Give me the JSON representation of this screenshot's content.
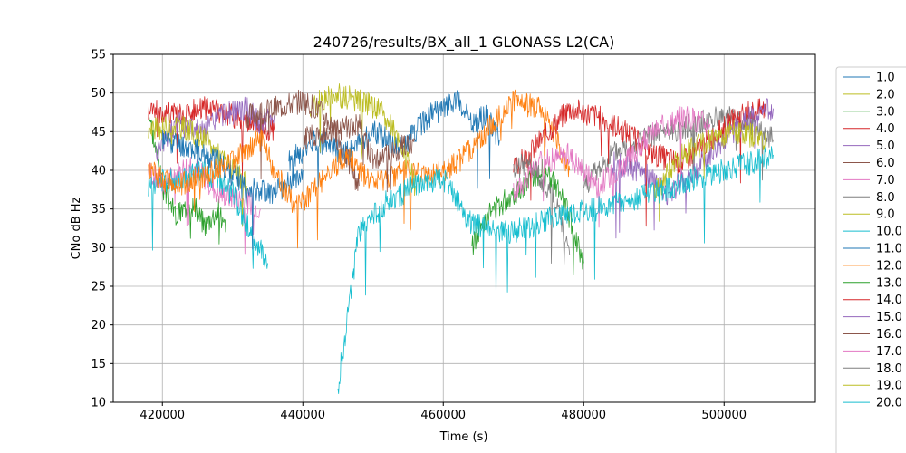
{
  "chart_data": {
    "type": "line",
    "title": "240726/results/BX_all_1 GLONASS L2(CA)",
    "xlabel": "Time (s)",
    "ylabel": "CNo dB Hz",
    "xlim": [
      413000,
      513000
    ],
    "ylim": [
      10,
      55
    ],
    "xticks": [
      420000,
      440000,
      460000,
      480000,
      500000
    ],
    "yticks": [
      10,
      15,
      20,
      25,
      30,
      35,
      40,
      45,
      50,
      55
    ],
    "grid": true,
    "legend_position": "right, outside plot (partially cut off)",
    "series": [
      {
        "name": "1.0",
        "color": "#1f77b4",
        "points": [
          [
            438000,
            41
          ],
          [
            442000,
            44
          ],
          [
            446000,
            42
          ],
          [
            450000,
            45
          ],
          [
            454000,
            43
          ],
          [
            458000,
            47
          ],
          [
            462000,
            49
          ],
          [
            464000,
            46
          ],
          [
            466000,
            47
          ],
          [
            468000,
            44
          ]
        ]
      },
      {
        "name": "2.0",
        "color": "#bcbd22",
        "points": [
          [
            441000,
            48
          ],
          [
            444000,
            50
          ],
          [
            448000,
            49
          ],
          [
            451000,
            48
          ],
          [
            453000,
            45
          ],
          [
            455000,
            41
          ],
          [
            456000,
            38
          ]
        ]
      },
      {
        "name": "3.0",
        "color": "#2ca02c",
        "points": [
          [
            418000,
            48
          ],
          [
            420000,
            38
          ],
          [
            422000,
            34
          ],
          [
            424000,
            36
          ],
          [
            426000,
            33
          ],
          [
            428000,
            35
          ],
          [
            429000,
            32
          ]
        ]
      },
      {
        "name": "4.0",
        "color": "#d62728",
        "points": [
          [
            418000,
            48
          ],
          [
            422000,
            47
          ],
          [
            426000,
            48
          ],
          [
            430000,
            47
          ],
          [
            432000,
            46
          ],
          [
            436000,
            45
          ]
        ]
      },
      {
        "name": "5.0",
        "color": "#9467bd",
        "points": [
          [
            419000,
            42
          ],
          [
            422000,
            46
          ],
          [
            426000,
            45
          ],
          [
            428000,
            47
          ],
          [
            432000,
            48
          ],
          [
            434000,
            46
          ],
          [
            436000,
            47
          ]
        ]
      },
      {
        "name": "6.0",
        "color": "#8c564b",
        "points": [
          [
            432000,
            47
          ],
          [
            436000,
            48
          ],
          [
            440000,
            49
          ],
          [
            442000,
            48
          ],
          [
            444000,
            46
          ],
          [
            446000,
            42
          ],
          [
            448000,
            38
          ]
        ]
      },
      {
        "name": "7.0",
        "color": "#e377c2",
        "points": [
          [
            418000,
            40
          ],
          [
            420000,
            38
          ],
          [
            424000,
            41
          ],
          [
            428000,
            37
          ],
          [
            432000,
            36
          ],
          [
            434000,
            35
          ]
        ]
      },
      {
        "name": "8.0",
        "color": "#7f7f7f",
        "points": [
          [
            480000,
            38
          ],
          [
            484000,
            42
          ],
          [
            488000,
            44
          ],
          [
            492000,
            45
          ],
          [
            496000,
            46
          ],
          [
            500000,
            47
          ],
          [
            504000,
            46
          ],
          [
            507000,
            44
          ]
        ]
      },
      {
        "name": "9.0",
        "color": "#bcbd22",
        "points": [
          [
            418000,
            45
          ],
          [
            422000,
            46
          ],
          [
            426000,
            44
          ],
          [
            430000,
            40
          ],
          [
            432000,
            38
          ]
        ]
      },
      {
        "name": "10.0",
        "color": "#17becf",
        "points": [
          [
            418000,
            38
          ],
          [
            422000,
            39
          ],
          [
            426000,
            40
          ],
          [
            430000,
            37
          ],
          [
            433000,
            31
          ],
          [
            435000,
            28
          ]
        ]
      },
      {
        "name": "11.0",
        "color": "#1f77b4",
        "points": [
          [
            420000,
            44
          ],
          [
            424000,
            43
          ],
          [
            428000,
            41
          ],
          [
            432000,
            38
          ],
          [
            436000,
            37
          ],
          [
            440000,
            40
          ]
        ]
      },
      {
        "name": "12.0",
        "color": "#ff7f0e",
        "points": [
          [
            418000,
            40
          ],
          [
            422000,
            38
          ],
          [
            428000,
            40
          ],
          [
            434000,
            44
          ],
          [
            436000,
            40
          ],
          [
            439000,
            35
          ],
          [
            442000,
            38
          ],
          [
            446000,
            42
          ],
          [
            450000,
            38
          ],
          [
            454000,
            40
          ],
          [
            458000,
            39
          ],
          [
            462000,
            41
          ],
          [
            466000,
            45
          ],
          [
            470000,
            49
          ],
          [
            474000,
            48
          ],
          [
            478000,
            40
          ]
        ]
      },
      {
        "name": "13.0",
        "color": "#2ca02c",
        "points": [
          [
            464000,
            30
          ],
          [
            466000,
            34
          ],
          [
            470000,
            37
          ],
          [
            474000,
            40
          ],
          [
            476000,
            38
          ],
          [
            478000,
            34
          ],
          [
            480000,
            28
          ]
        ]
      },
      {
        "name": "14.0",
        "color": "#d62728",
        "points": [
          [
            470000,
            40
          ],
          [
            474000,
            44
          ],
          [
            478000,
            48
          ],
          [
            482000,
            47
          ],
          [
            486000,
            45
          ],
          [
            490000,
            42
          ],
          [
            494000,
            41
          ],
          [
            498000,
            44
          ],
          [
            502000,
            47
          ],
          [
            506000,
            48
          ]
        ]
      },
      {
        "name": "15.0",
        "color": "#9467bd",
        "points": [
          [
            484000,
            41
          ],
          [
            488000,
            40
          ],
          [
            492000,
            37
          ],
          [
            496000,
            40
          ],
          [
            500000,
            44
          ],
          [
            504000,
            47
          ],
          [
            507000,
            48
          ]
        ]
      },
      {
        "name": "16.0",
        "color": "#8c564b",
        "points": [
          [
            440000,
            44
          ],
          [
            444000,
            45
          ],
          [
            448000,
            46
          ],
          [
            450000,
            41
          ],
          [
            452000,
            42
          ],
          [
            456000,
            44
          ]
        ]
      },
      {
        "name": "17.0",
        "color": "#e377c2",
        "points": [
          [
            470000,
            37
          ],
          [
            474000,
            41
          ],
          [
            478000,
            42
          ],
          [
            482000,
            38
          ],
          [
            486000,
            41
          ],
          [
            490000,
            45
          ],
          [
            494000,
            47
          ],
          [
            498000,
            46
          ]
        ]
      },
      {
        "name": "18.0",
        "color": "#7f7f7f",
        "points": [
          [
            470000,
            40
          ],
          [
            472000,
            41
          ],
          [
            474000,
            39
          ],
          [
            476000,
            36
          ],
          [
            478000,
            29
          ]
        ]
      },
      {
        "name": "19.0",
        "color": "#bcbd22",
        "points": [
          [
            490000,
            37
          ],
          [
            494000,
            42
          ],
          [
            498000,
            44
          ],
          [
            502000,
            45
          ],
          [
            506000,
            44
          ]
        ]
      },
      {
        "name": "20.0",
        "color": "#17becf",
        "points": [
          [
            445000,
            12
          ],
          [
            448000,
            32
          ],
          [
            452000,
            36
          ],
          [
            456000,
            38
          ],
          [
            460000,
            39
          ],
          [
            464000,
            33
          ],
          [
            470000,
            32
          ],
          [
            476000,
            34
          ],
          [
            482000,
            35
          ],
          [
            490000,
            37
          ],
          [
            496000,
            39
          ],
          [
            500000,
            40
          ],
          [
            504000,
            41
          ],
          [
            507000,
            42
          ]
        ]
      }
    ]
  }
}
